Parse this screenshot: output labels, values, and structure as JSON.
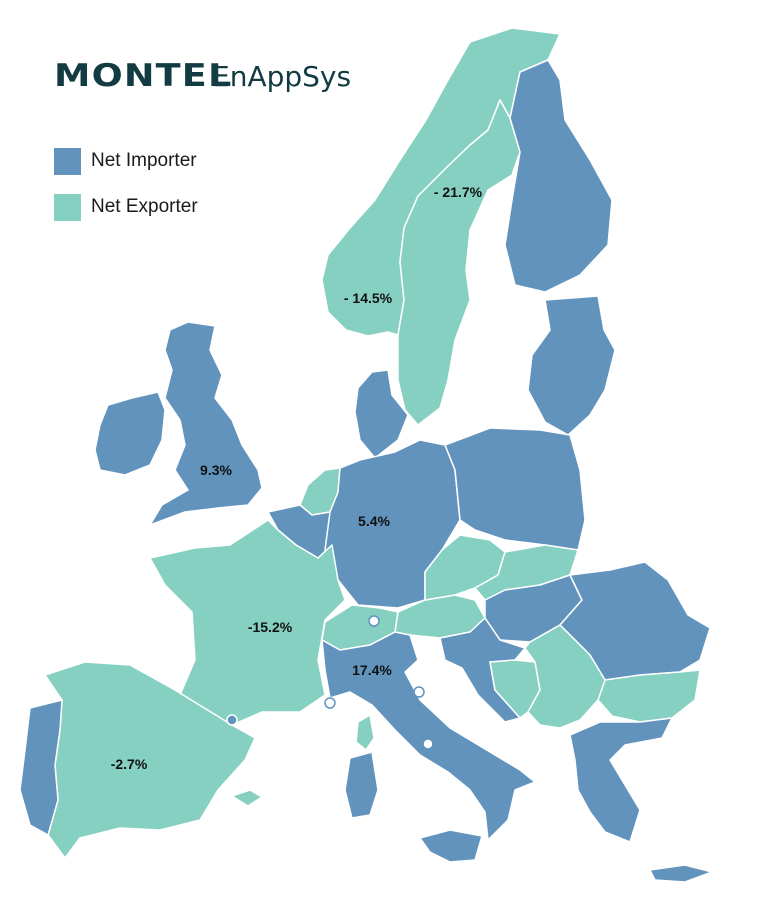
{
  "logo": {
    "brand": "MONTEL",
    "product": "EnAppSys"
  },
  "legend": [
    {
      "label": "Net Importer",
      "color": "#6193bd"
    },
    {
      "label": "Net Exporter",
      "color": "#85d0c0"
    }
  ],
  "colors": {
    "importer": "#6193bd",
    "exporter": "#85d0c0",
    "border": "#ffffff",
    "background": "#ffffff"
  },
  "regions": {
    "norway": {
      "status": "exporter",
      "value": "- 14.5%"
    },
    "sweden": {
      "status": "exporter",
      "value": "- 21.7%"
    },
    "finland": {
      "status": "importer"
    },
    "baltics": {
      "status": "importer"
    },
    "uk": {
      "status": "importer",
      "value": "9.3%"
    },
    "ireland": {
      "status": "importer"
    },
    "denmark": {
      "status": "importer"
    },
    "netherlands": {
      "status": "exporter"
    },
    "belgium": {
      "status": "importer"
    },
    "germany": {
      "status": "importer",
      "value": "5.4%"
    },
    "poland": {
      "status": "importer"
    },
    "france": {
      "status": "exporter",
      "value": "-15.2%"
    },
    "spain": {
      "status": "exporter",
      "value": "-2.7%"
    },
    "portugal": {
      "status": "importer"
    },
    "switzerland": {
      "status": "exporter"
    },
    "italy": {
      "status": "importer",
      "value": "17.4%"
    },
    "czechia": {
      "status": "exporter"
    },
    "slovakia": {
      "status": "exporter"
    },
    "austria": {
      "status": "exporter"
    },
    "hungary": {
      "status": "importer"
    },
    "romania": {
      "status": "importer"
    },
    "bulgaria": {
      "status": "exporter"
    },
    "serbia": {
      "status": "exporter"
    },
    "croatia": {
      "status": "importer"
    },
    "bosnia": {
      "status": "exporter"
    },
    "greece": {
      "status": "importer"
    }
  }
}
